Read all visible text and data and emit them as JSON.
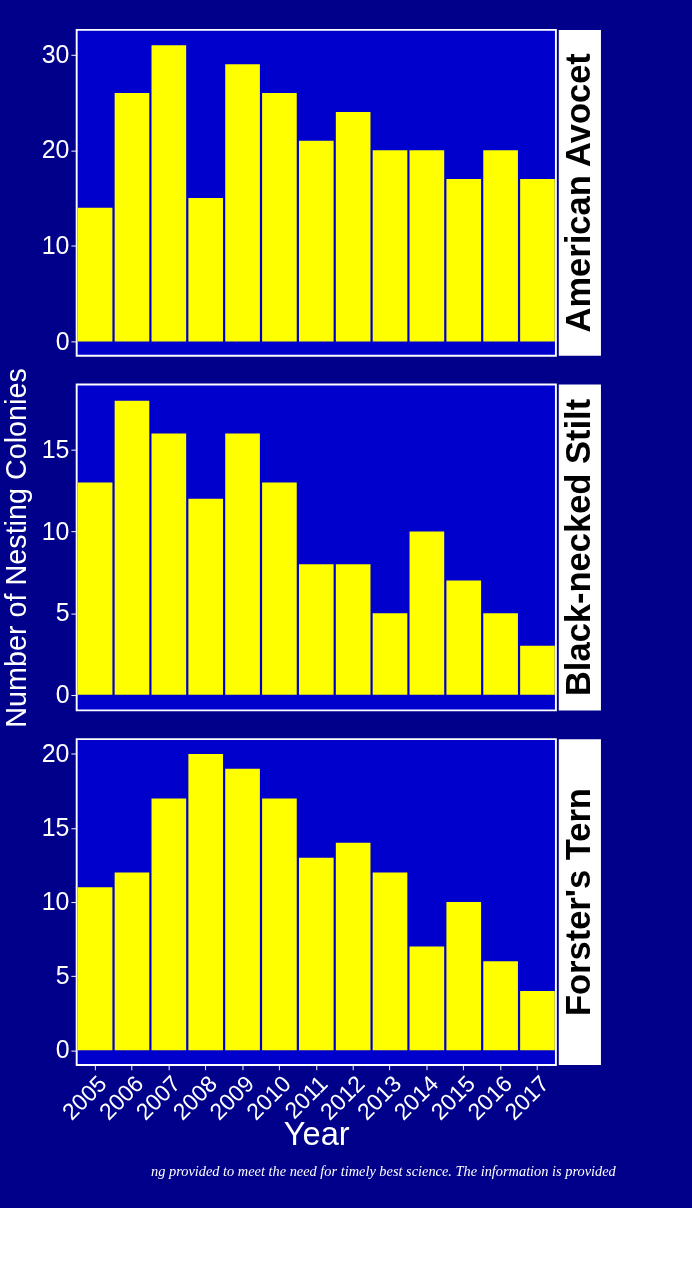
{
  "chart_data": [
    {
      "type": "bar",
      "title": "American Avocet",
      "categories": [
        "2005",
        "2006",
        "2007",
        "2008",
        "2009",
        "2010",
        "2011",
        "2012",
        "2013",
        "2014",
        "2015",
        "2016",
        "2017"
      ],
      "values": [
        14,
        26,
        31,
        15,
        29,
        26,
        21,
        24,
        20,
        20,
        17,
        20,
        17
      ],
      "color": "#ffff00",
      "ylim": [
        -1.5,
        32.6
      ],
      "yticks": [
        0,
        10,
        20,
        30
      ],
      "tick_labels": "y"
    },
    {
      "type": "bar",
      "title": "Black-necked Stilt",
      "ylabel": "Number of Nesting Colonies",
      "categories": [
        "2005",
        "2006",
        "2007",
        "2008",
        "2009",
        "2010",
        "2011",
        "2012",
        "2013",
        "2014",
        "2015",
        "2016",
        "2017"
      ],
      "values": [
        13,
        18,
        16,
        12,
        16,
        13,
        8,
        8,
        5,
        10,
        7,
        5,
        3
      ],
      "color": "#ffff00",
      "ylim": [
        -0.95,
        19
      ],
      "yticks": [
        0,
        5,
        10,
        15
      ],
      "tick_labels": "y"
    },
    {
      "type": "bar",
      "title": "Forster's Tern",
      "xlabel": "Year",
      "categories": [
        "2005",
        "2006",
        "2007",
        "2008",
        "2009",
        "2010",
        "2011",
        "2012",
        "2013",
        "2014",
        "2015",
        "2016",
        "2017"
      ],
      "values": [
        11,
        12,
        17,
        20,
        19,
        17,
        13,
        14,
        12,
        7,
        10,
        6,
        4
      ],
      "color": "#ffff00",
      "ylim": [
        -1,
        21
      ],
      "yticks": [
        0,
        5,
        10,
        15,
        20
      ],
      "annotations": [
        "ng provided to meet the need for timely best science. The information is provided"
      ]
    }
  ]
}
